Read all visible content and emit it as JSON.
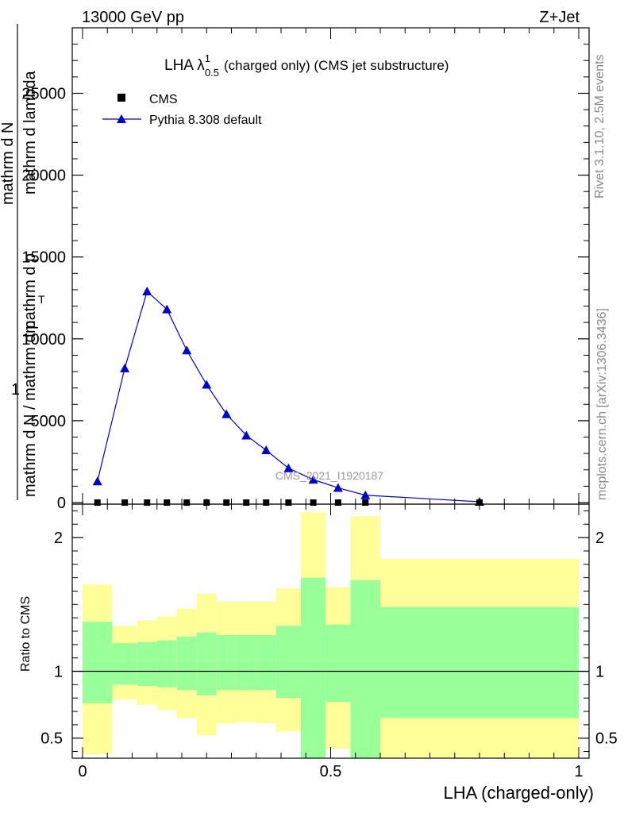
{
  "header": {
    "left": "13000 GeV pp",
    "right": "Z+Jet"
  },
  "side_text": {
    "rivet": "Rivet 3.1.10,  2.5M events",
    "mcplots": "mcplots.cern.ch [arXiv:1306.3436]"
  },
  "watermark": "CMS_2021_I1920187",
  "colors": {
    "data": "#000000",
    "mc": "#0000cc",
    "band_inner": "#99ff99",
    "band_outer": "#ffff99",
    "axes": "#000000"
  },
  "chart_data": [
    {
      "type": "line",
      "title": "LHA λ",
      "title_sup": "1",
      "title_sub": "0.5",
      "title_suffix": "(charged only) (CMS jet substructure)",
      "ylabel_top": "1",
      "ylabel_rot_num": "mathrm d N / mathrm d p",
      "ylabel_rot_den": "mathrm d N",
      "ylabel_rot_den2": "mathrm d p",
      "ylabel_rot_den3": "mathrm d lambda",
      "ylabel_sub": "T",
      "xlabel": "",
      "xlim": [
        0,
        1
      ],
      "ylim": [
        0,
        29000
      ],
      "yticks": [
        0,
        5000,
        10000,
        15000,
        20000,
        25000
      ],
      "ytick_labels": [
        "0",
        "5000",
        "10000",
        "15000",
        "20000",
        "25000"
      ],
      "legend": [
        {
          "label": "CMS",
          "marker": "square"
        },
        {
          "label": "Pythia 8.308 default",
          "marker": "triangle"
        }
      ],
      "series": [
        {
          "name": "CMS",
          "x": [
            0.03,
            0.085,
            0.13,
            0.17,
            0.21,
            0.25,
            0.29,
            0.33,
            0.37,
            0.415,
            0.465,
            0.515,
            0.57,
            0.8
          ],
          "y": [
            0,
            0,
            0,
            0,
            0,
            0,
            0,
            0,
            0,
            0,
            0,
            0,
            0,
            0
          ]
        },
        {
          "name": "Pythia 8.308 default",
          "x": [
            0.03,
            0.085,
            0.13,
            0.17,
            0.21,
            0.25,
            0.29,
            0.33,
            0.37,
            0.415,
            0.465,
            0.515,
            0.57,
            0.8
          ],
          "y": [
            1300,
            8200,
            12900,
            11800,
            9300,
            7200,
            5400,
            4100,
            3200,
            2100,
            1400,
            900,
            450,
            50
          ]
        }
      ]
    },
    {
      "type": "area",
      "ylabel": "Ratio to CMS",
      "xlabel": "LHA (charged-only)",
      "xlim": [
        0,
        1
      ],
      "ylim": [
        0.35,
        2.25
      ],
      "xticks": [
        0,
        0.5,
        1
      ],
      "xtick_labels": [
        "0",
        "0.5",
        "1"
      ],
      "yticks": [
        0.5,
        1,
        2
      ],
      "ytick_labels": [
        "0.5",
        "1",
        "2"
      ],
      "bins": [
        0,
        0.06,
        0.11,
        0.15,
        0.19,
        0.23,
        0.27,
        0.31,
        0.35,
        0.39,
        0.44,
        0.49,
        0.54,
        0.6,
        1.0
      ],
      "band_inner": {
        "lo": [
          0.76,
          0.9,
          0.89,
          0.88,
          0.86,
          0.82,
          0.86,
          0.86,
          0.86,
          0.8,
          0.35,
          0.77,
          0.35,
          0.65
        ],
        "hi": [
          1.37,
          1.21,
          1.22,
          1.23,
          1.26,
          1.29,
          1.27,
          1.27,
          1.27,
          1.34,
          1.7,
          1.35,
          1.68,
          1.48
        ]
      },
      "band_outer": {
        "lo": [
          0.38,
          0.79,
          0.75,
          0.71,
          0.65,
          0.52,
          0.61,
          0.62,
          0.61,
          0.55,
          0.35,
          0.42,
          0.35,
          0.35
        ],
        "hi": [
          1.65,
          1.34,
          1.38,
          1.41,
          1.47,
          1.58,
          1.52,
          1.52,
          1.52,
          1.62,
          2.19,
          1.63,
          2.16,
          1.84
        ]
      }
    }
  ]
}
